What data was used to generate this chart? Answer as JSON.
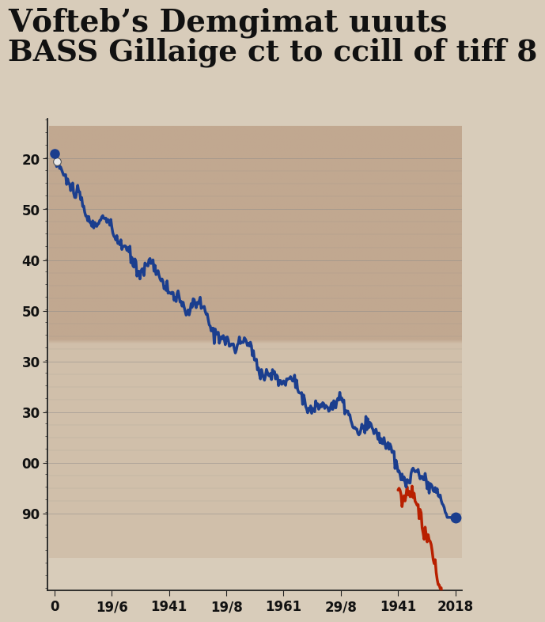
{
  "title_line1": "Vōfteb’s Demgimat uuuts",
  "title_line2": "BASS Gillaige ct to ccill of tiff 8",
  "title_fontsize": 28,
  "subtitle_fontsize": 27,
  "title_color": "#111111",
  "bg_color": "#d8ccba",
  "plot_bg_color": "#d8ccba",
  "x_labels": [
    "0",
    "19/6",
    "1941",
    "19/8",
    "1961",
    "29/8",
    "1941",
    "2018"
  ],
  "y_labels_top_to_bottom": [
    "20",
    "50",
    "40",
    "50",
    "30",
    "30",
    "00",
    "90"
  ],
  "blue_line_color": "#1b3e8e",
  "red_line_color": "#b82000",
  "line_width": 2.5,
  "marker_size": 8,
  "grid_color": "#888888",
  "axis_color": "#222222",
  "photo_tint_color": "#c8b49a",
  "photo_tint_alpha": 0.55
}
